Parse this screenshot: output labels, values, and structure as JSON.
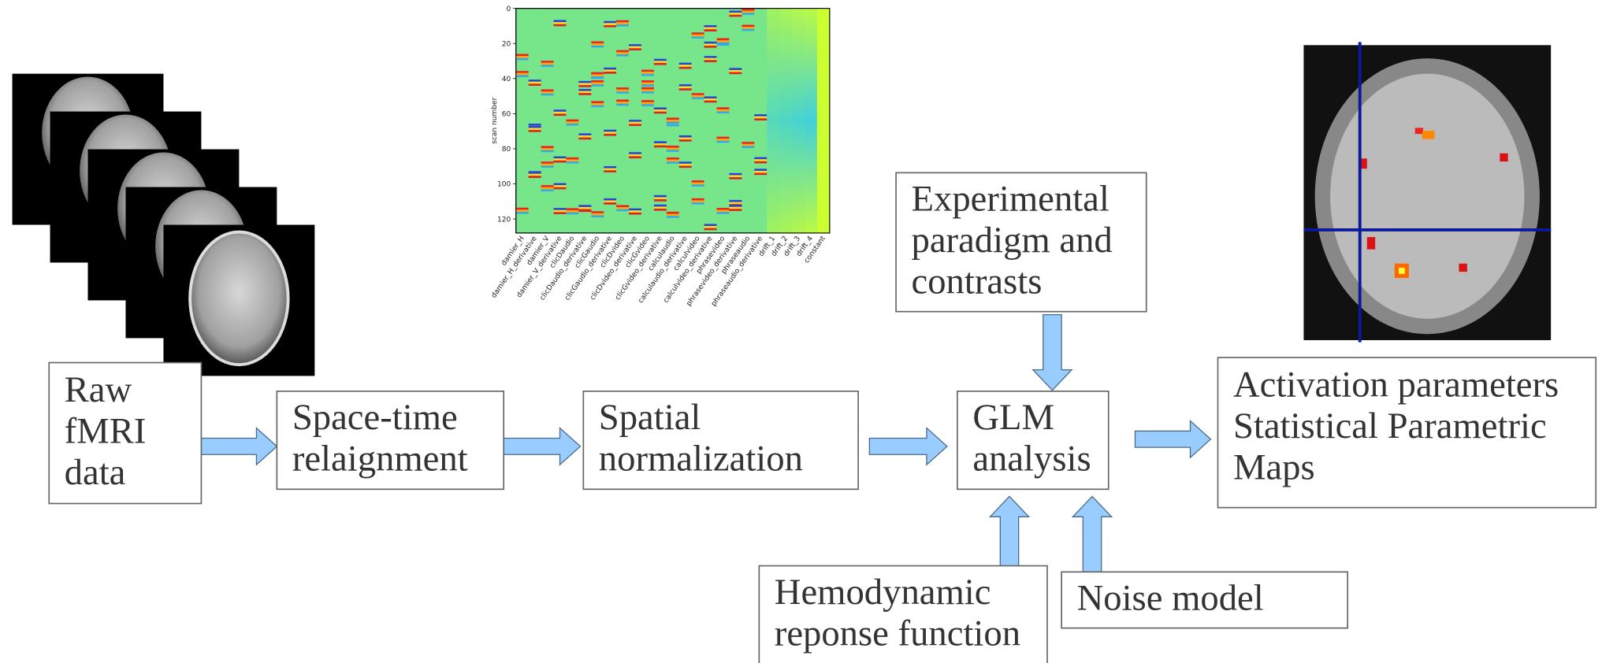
{
  "design_matrix": {
    "ylabel": "scan number",
    "ylim": [
      0,
      128
    ],
    "yticks": [
      0,
      20,
      40,
      60,
      80,
      100,
      120
    ],
    "columns": [
      "damier_H",
      "damier_H_derivative",
      "damier_V",
      "damier_V_derivative",
      "clicDaudio",
      "clicDaudio_derivative",
      "clicGaudio",
      "clicGaudio_derivative",
      "clicDvideo",
      "clicDvideo_derivative",
      "clicGvideo",
      "clicGvideo_derivative",
      "calculaudio",
      "calculaudio_derivative",
      "calculvideo",
      "calculvideo_derivative",
      "phrasevideo",
      "phrasevideo_derivative",
      "phraseaudio",
      "phraseaudio_derivative",
      "drift_1",
      "drift_2",
      "drift_3",
      "drift_4",
      "constant"
    ]
  },
  "nodes": [
    {
      "lines": [
        "Raw",
        "fMRI",
        "data"
      ]
    },
    {
      "lines": [
        "Space-time",
        "relaignment"
      ]
    },
    {
      "lines": [
        "Spatial",
        "normalization"
      ]
    },
    {
      "lines": [
        "GLM",
        "analysis"
      ]
    },
    {
      "lines": [
        "Activation parameters",
        "Statistical Parametric",
        "Maps"
      ]
    },
    {
      "lines": [
        "Experimental",
        "paradigm and",
        "contrasts"
      ]
    },
    {
      "lines": [
        "Hemodynamic",
        "reponse function"
      ]
    },
    {
      "lines": [
        "Noise model"
      ]
    }
  ]
}
